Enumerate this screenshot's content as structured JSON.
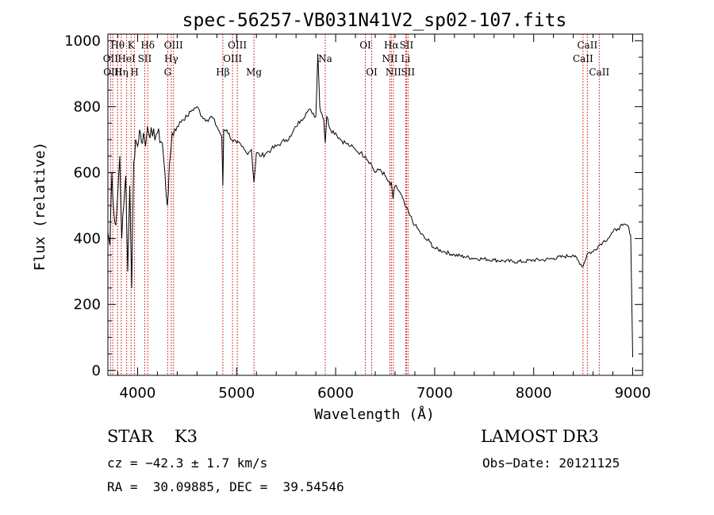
{
  "chart_data": {
    "type": "line",
    "title": "spec-56257-VB031N41V2_sp02-107.fits",
    "xlabel": "Wavelength (Å)",
    "ylabel": "Flux (relative)",
    "xlim": [
      3700,
      9100
    ],
    "ylim": [
      -15,
      1020
    ],
    "xticks": [
      4000,
      5000,
      6000,
      7000,
      8000,
      9000
    ],
    "yticks": [
      0,
      200,
      400,
      600,
      800,
      1000
    ],
    "series": [
      {
        "name": "flux",
        "x": [
          3700,
          3720,
          3740,
          3760,
          3780,
          3800,
          3820,
          3840,
          3860,
          3880,
          3900,
          3920,
          3940,
          3960,
          3980,
          4000,
          4020,
          4040,
          4060,
          4080,
          4100,
          4150,
          4200,
          4250,
          4300,
          4330,
          4350,
          4400,
          4450,
          4500,
          4550,
          4600,
          4650,
          4700,
          4750,
          4800,
          4850,
          4861,
          4870,
          4900,
          4950,
          5000,
          5050,
          5100,
          5150,
          5175,
          5200,
          5250,
          5300,
          5350,
          5400,
          5450,
          5500,
          5550,
          5600,
          5650,
          5700,
          5750,
          5800,
          5820,
          5840,
          5860,
          5880,
          5895,
          5910,
          5950,
          6000,
          6050,
          6100,
          6150,
          6200,
          6250,
          6300,
          6350,
          6400,
          6450,
          6500,
          6550,
          6563,
          6580,
          6600,
          6650,
          6700,
          6750,
          6800,
          6850,
          6900,
          6950,
          7000,
          7100,
          7200,
          7300,
          7400,
          7500,
          7600,
          7700,
          7800,
          7900,
          8000,
          8100,
          8200,
          8300,
          8400,
          8498,
          8542,
          8600,
          8662,
          8700,
          8750,
          8800,
          8850,
          8900,
          8950,
          8980,
          9000
        ],
        "values": [
          420,
          380,
          600,
          480,
          440,
          540,
          650,
          400,
          500,
          590,
          300,
          560,
          250,
          630,
          700,
          680,
          730,
          690,
          720,
          680,
          740,
          710,
          720,
          690,
          500,
          650,
          720,
          740,
          760,
          770,
          790,
          800,
          770,
          760,
          770,
          740,
          710,
          560,
          730,
          730,
          700,
          690,
          680,
          660,
          670,
          570,
          660,
          650,
          660,
          670,
          680,
          690,
          700,
          710,
          740,
          760,
          780,
          790,
          770,
          960,
          800,
          780,
          760,
          690,
          770,
          730,
          720,
          700,
          690,
          680,
          670,
          660,
          650,
          630,
          600,
          610,
          590,
          560,
          570,
          520,
          560,
          540,
          500,
          470,
          440,
          420,
          400,
          390,
          370,
          360,
          350,
          345,
          340,
          338,
          335,
          332,
          330,
          330,
          335,
          335,
          340,
          345,
          350,
          315,
          355,
          360,
          380,
          390,
          400,
          420,
          430,
          440,
          440,
          410,
          40
        ]
      }
    ],
    "spectral_lines": [
      {
        "label": "Hθ",
        "x": 3798,
        "row": 1
      },
      {
        "label": "OII",
        "x": 3727,
        "row": 2
      },
      {
        "label": "OIII",
        "x": 3750,
        "row": 3
      },
      {
        "label": "K",
        "x": 3934,
        "row": 1
      },
      {
        "label": "HeI",
        "x": 3889,
        "row": 2
      },
      {
        "label": "Hη",
        "x": 3835,
        "row": 3
      },
      {
        "label": "Hδ",
        "x": 4102,
        "row": 1
      },
      {
        "label": "SII",
        "x": 4072,
        "row": 2
      },
      {
        "label": "H",
        "x": 3969,
        "row": 3
      },
      {
        "label": "OIII",
        "x": 4363,
        "row": 1
      },
      {
        "label": "Hγ",
        "x": 4340,
        "row": 2
      },
      {
        "label": "G",
        "x": 4304,
        "row": 3
      },
      {
        "label": "OIII",
        "x": 5007,
        "row": 1
      },
      {
        "label": "OIII",
        "x": 4959,
        "row": 2
      },
      {
        "label": "Hβ",
        "x": 4861,
        "row": 3
      },
      {
        "label": "Mg",
        "x": 5175,
        "row": 3
      },
      {
        "label": "Na",
        "x": 5895,
        "row": 2
      },
      {
        "label": "OI",
        "x": 6300,
        "row": 1
      },
      {
        "label": "OI",
        "x": 6364,
        "row": 3
      },
      {
        "label": "Hα",
        "x": 6563,
        "row": 1
      },
      {
        "label": "NII",
        "x": 6548,
        "row": 2
      },
      {
        "label": "NII",
        "x": 6583,
        "row": 3
      },
      {
        "label": "SII",
        "x": 6716,
        "row": 1
      },
      {
        "label": "Li",
        "x": 6707,
        "row": 2
      },
      {
        "label": "SII",
        "x": 6731,
        "row": 3
      },
      {
        "label": "CaII",
        "x": 8542,
        "row": 1
      },
      {
        "label": "CaII",
        "x": 8498,
        "row": 2
      },
      {
        "label": "CaII",
        "x": 8662,
        "row": 3
      }
    ]
  },
  "info": {
    "class_line": "STAR    K3",
    "survey": "LAMOST DR3",
    "cz": "cz = −42.3 ± 1.7 km/s",
    "obs_date": "Obs−Date: 20121125",
    "coords": "RA =  30.09885, DEC =  39.54546"
  },
  "colors": {
    "spectrum": "#000000",
    "line_marker": "#cc0000"
  }
}
